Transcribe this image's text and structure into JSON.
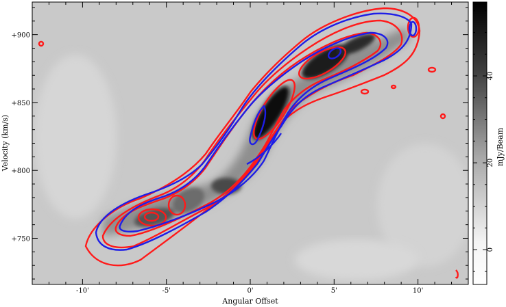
{
  "chart_data": {
    "type": "heatmap",
    "title": "",
    "xlabel": "Angular Offset",
    "ylabel": "Velocity (km/s)",
    "xlim": [
      13,
      -13
    ],
    "ylim": [
      716,
      924
    ],
    "x_ticks": [
      {
        "value": 10,
        "label": "-10'"
      },
      {
        "value": 5,
        "label": "-5'"
      },
      {
        "value": 0,
        "label": "0'"
      },
      {
        "value": -5,
        "label": "5'"
      },
      {
        "value": -10,
        "label": "10'"
      }
    ],
    "y_ticks": [
      {
        "value": 900,
        "label": "+900"
      },
      {
        "value": 850,
        "label": "+850"
      },
      {
        "value": 800,
        "label": "+800"
      },
      {
        "value": 750,
        "label": "+750"
      }
    ],
    "colorbar": {
      "label": "mJy/Beam",
      "range": [
        -8,
        57
      ],
      "ticks": [
        {
          "value": 40,
          "label": "40"
        },
        {
          "value": 20,
          "label": "20"
        },
        {
          "value": 0,
          "label": "0"
        }
      ]
    },
    "grid": false,
    "legend": "none",
    "series": [
      {
        "values": [
          [
            6.2,
            767
          ],
          [
            4.3,
            776
          ],
          [
            1.8,
            842
          ],
          [
            -1.2,
            845
          ],
          [
            -4.8,
            882
          ]
        ]
      },
      {
        "values": [
          [
            6.2,
            767
          ],
          [
            4.3,
            776
          ],
          [
            1.8,
            842
          ],
          [
            -1.2,
            845
          ],
          [
            -4.8,
            882
          ]
        ]
      }
    ],
    "colors": {
      "contour_red": "#ff1a1a",
      "contour_blue": "#1e1ee6",
      "background_gray": "#c8c8c8"
    }
  }
}
